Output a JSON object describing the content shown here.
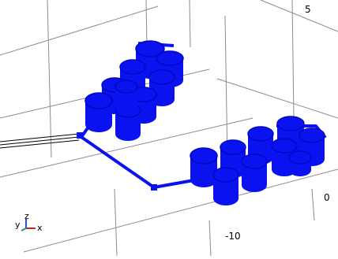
{
  "graphics": {
    "tick_labels": {
      "top": "5",
      "right": "0",
      "bottom": "-10"
    },
    "axis_triad": {
      "y_label": "y",
      "z_label": "z",
      "x_label": "x"
    },
    "colors": {
      "geometry": "#0a12f0",
      "grid": "#8c8c8c",
      "background": "#ffffff",
      "triad_x": "#c0282d",
      "triad_y": "#1aa34a",
      "triad_z": "#2a4fd0"
    }
  }
}
